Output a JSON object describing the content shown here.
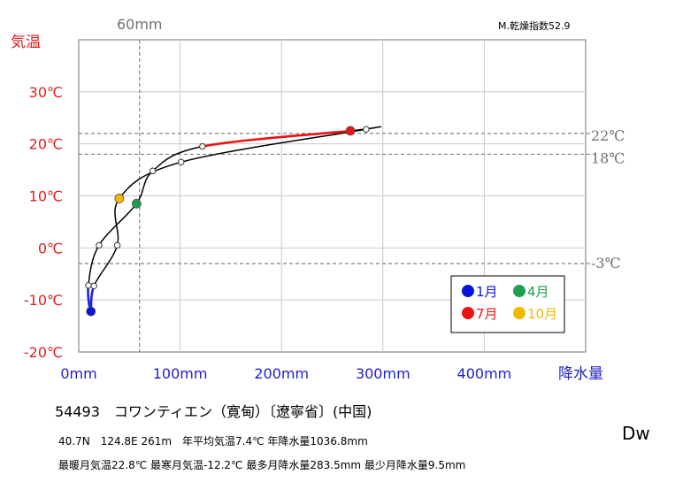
{
  "chart_data": {
    "type": "line",
    "title": "",
    "y_axis": {
      "label": "気温",
      "range": [
        -20,
        40
      ],
      "ticks": [
        {
          "value": 30,
          "label": "30℃"
        },
        {
          "value": 20,
          "label": "20℃"
        },
        {
          "value": 10,
          "label": "10℃"
        },
        {
          "value": 0,
          "label": "0℃"
        },
        {
          "value": -10,
          "label": "-10℃"
        },
        {
          "value": -20,
          "label": "-20℃"
        }
      ]
    },
    "x_axis": {
      "label": "降水量",
      "range": [
        0,
        500
      ],
      "ticks": [
        {
          "value": 0,
          "label": "0mm"
        },
        {
          "value": 100,
          "label": "100mm"
        },
        {
          "value": 200,
          "label": "200mm"
        },
        {
          "value": 300,
          "label": "300mm"
        },
        {
          "value": 400,
          "label": "400mm"
        }
      ]
    },
    "grid": true,
    "reference_lines": {
      "vertical": [
        {
          "value": 60,
          "label": "60mm"
        }
      ],
      "horizontal": [
        {
          "value": 22,
          "label": "22℃"
        },
        {
          "value": 18,
          "label": "18℃"
        },
        {
          "value": -3,
          "label": "-3℃"
        }
      ]
    },
    "aridity_label": "M.乾燥指数52.9",
    "months": [
      {
        "month": 1,
        "precip": 12,
        "temp": -12.2
      },
      {
        "month": 2,
        "precip": 9.5,
        "temp": -7.2
      },
      {
        "month": 3,
        "precip": 20,
        "temp": 0.5
      },
      {
        "month": 4,
        "precip": 57,
        "temp": 8.5
      },
      {
        "month": 5,
        "precip": 73,
        "temp": 14.8
      },
      {
        "month": 6,
        "precip": 122,
        "temp": 19.5
      },
      {
        "month": 7,
        "precip": 268,
        "temp": 22.5
      },
      {
        "month": 8,
        "precip": 283.5,
        "temp": 22.8
      },
      {
        "month": 9,
        "precip": 101,
        "temp": 16.5
      },
      {
        "month": 10,
        "precip": 40,
        "temp": 9.5
      },
      {
        "month": 11,
        "precip": 38,
        "temp": 0.5
      },
      {
        "month": 12,
        "precip": 15,
        "temp": -7.3
      }
    ],
    "legend": {
      "placement": "bottom-right",
      "items": [
        {
          "label": "1月",
          "color": "#0a14e0"
        },
        {
          "label": "4月",
          "color": "#1e9e50"
        },
        {
          "label": "7月",
          "color": "#ee1111"
        },
        {
          "label": "10月",
          "color": "#f5b800"
        }
      ]
    },
    "colors": {
      "winter_segment": "#1a22e6",
      "summer_segment": "#ee1111",
      "temp_axis": "#e01e1e",
      "precip_axis": "#1e1ec8",
      "reference": "#808080"
    }
  },
  "station": "54493　コワンティエン（寛甸）〔遼寧省〕(中国)",
  "meta_line1": "40.7N　124.8E 261m　年平均気温7.4℃ 年降水量1036.8mm",
  "meta_line2": "最暖月気温22.8℃ 最寒月気温-12.2℃ 最多月降水量283.5mm 最少月降水量9.5mm",
  "climate_code": "Dw"
}
